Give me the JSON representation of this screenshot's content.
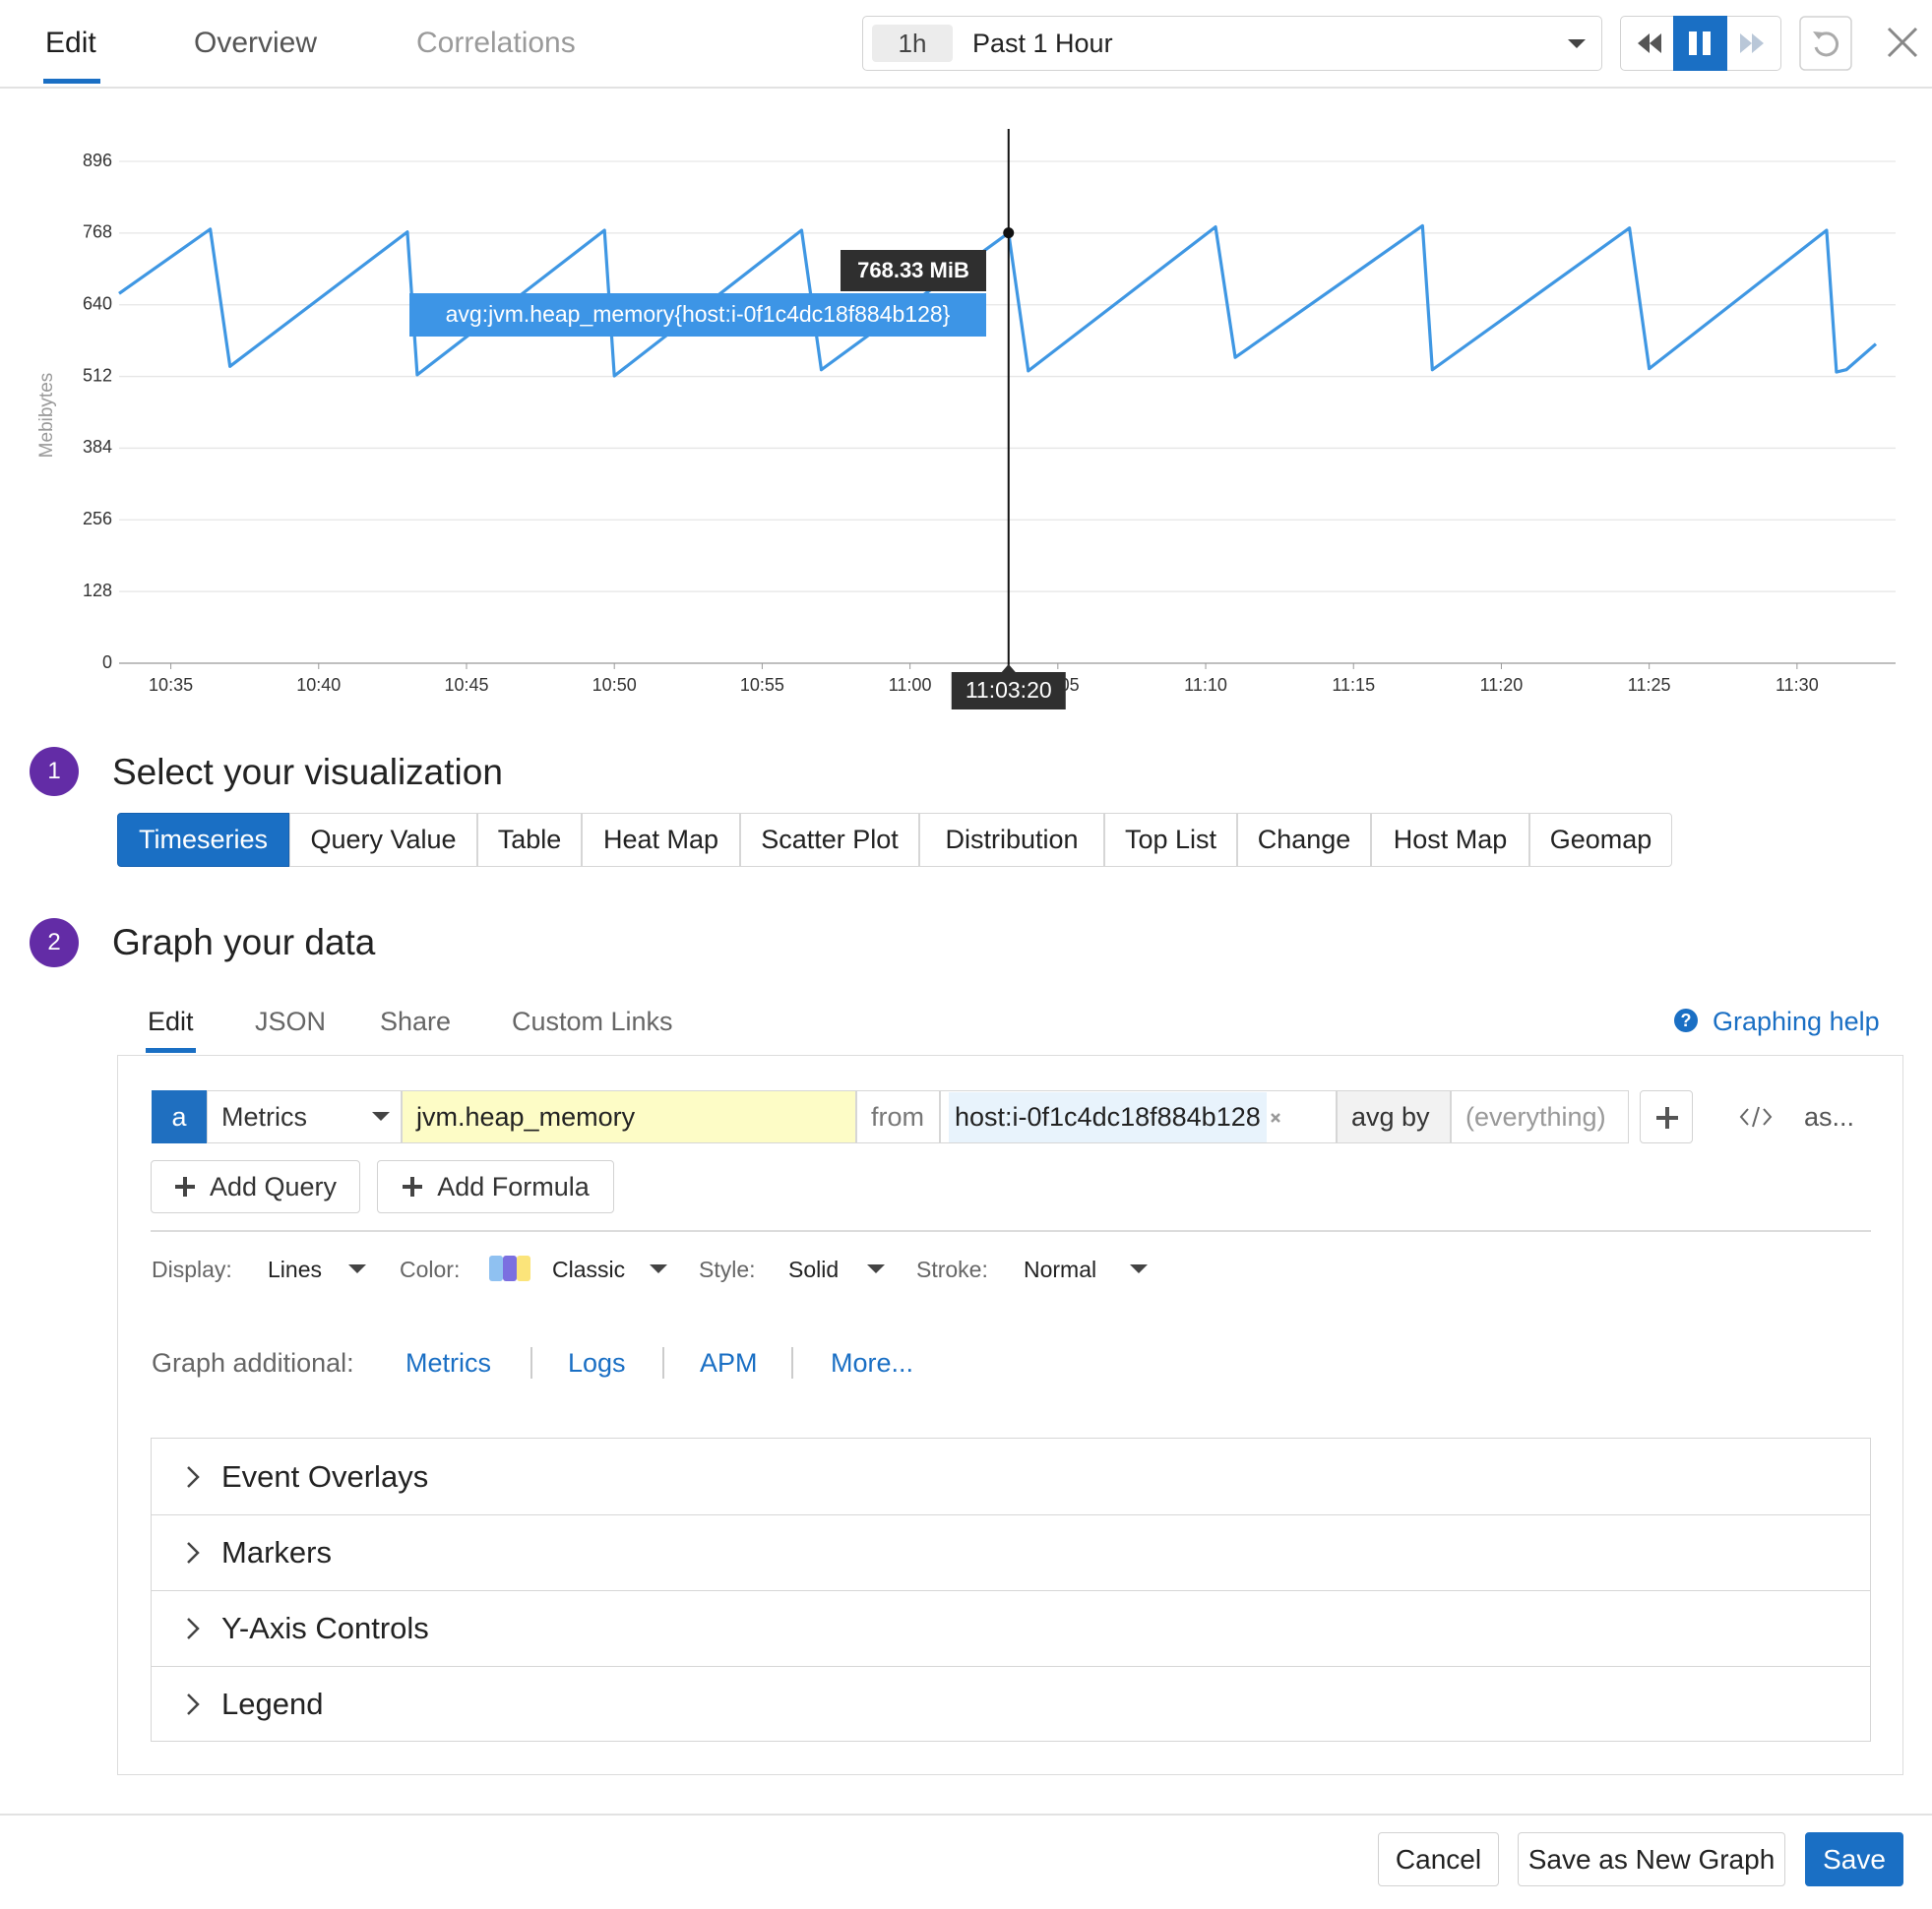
{
  "header": {
    "tabs": [
      "Edit",
      "Overview",
      "Correlations"
    ],
    "time_chip": "1h",
    "time_range": "Past 1 Hour"
  },
  "chart_data": {
    "type": "line",
    "y_label": "Mebibytes",
    "x": [
      "10:33:15",
      "10:36:20",
      "10:37:00",
      "10:43:00",
      "10:43:20",
      "10:49:40",
      "10:50:00",
      "10:56:20",
      "10:57:00",
      "11:03:20",
      "11:04:00",
      "11:10:20",
      "11:11:00",
      "11:17:20",
      "11:17:40",
      "11:24:20",
      "11:25:00",
      "11:31:00",
      "11:31:20",
      "11:31:40",
      "11:32:40"
    ],
    "series": [
      {
        "name": "avg:jvm.heap_memory{host:i-0f1c4dc18f884b128}",
        "color": "#3f97e3",
        "values": [
          660,
          775,
          530,
          770,
          515,
          773,
          513,
          773,
          524,
          768.33,
          522,
          779,
          546,
          781,
          524,
          777,
          526,
          773,
          520,
          524,
          570
        ]
      }
    ],
    "xlim": [
      "10:33:15",
      "11:33:20"
    ],
    "xticks": [
      "10:35",
      "10:40",
      "10:45",
      "10:50",
      "10:55",
      "11:00",
      "11:05",
      "11:10",
      "11:15",
      "11:20",
      "11:25",
      "11:30"
    ],
    "ylim": [
      0,
      896
    ],
    "yticks": [
      0,
      128,
      256,
      384,
      512,
      640,
      768,
      896
    ],
    "grid": true,
    "crosshair": {
      "x": "11:03:20",
      "value_label": "768.33 MiB"
    }
  },
  "visualization": {
    "step": "1",
    "title": "Select your visualization",
    "options": [
      "Timeseries",
      "Query Value",
      "Table",
      "Heat Map",
      "Scatter Plot",
      "Distribution",
      "Top List",
      "Change",
      "Host Map",
      "Geomap"
    ]
  },
  "graph": {
    "step": "2",
    "title": "Graph your data",
    "tabs": [
      "Edit",
      "JSON",
      "Share",
      "Custom Links"
    ],
    "help": "Graphing help",
    "query": {
      "letter": "a",
      "source": "Metrics",
      "metric": "jvm.heap_memory",
      "from": "from",
      "scope": "host:i-0f1c4dc18f884b128",
      "avg_by": "avg by",
      "group": "(everything)",
      "alias": "as..."
    },
    "add_buttons": [
      "Add Query",
      "Add Formula"
    ],
    "display": [
      {
        "label": "Display:",
        "value": "Lines"
      },
      {
        "label": "Color:",
        "value": "Classic"
      },
      {
        "label": "Style:",
        "value": "Solid"
      },
      {
        "label": "Stroke:",
        "value": "Normal"
      }
    ],
    "additional": {
      "label": "Graph additional:",
      "links": [
        "Metrics",
        "Logs",
        "APM",
        "More..."
      ]
    },
    "sections": [
      "Event Overlays",
      "Markers",
      "Y-Axis Controls",
      "Legend"
    ]
  },
  "footer": {
    "buttons": [
      "Cancel",
      "Save as New Graph",
      "Save"
    ]
  }
}
